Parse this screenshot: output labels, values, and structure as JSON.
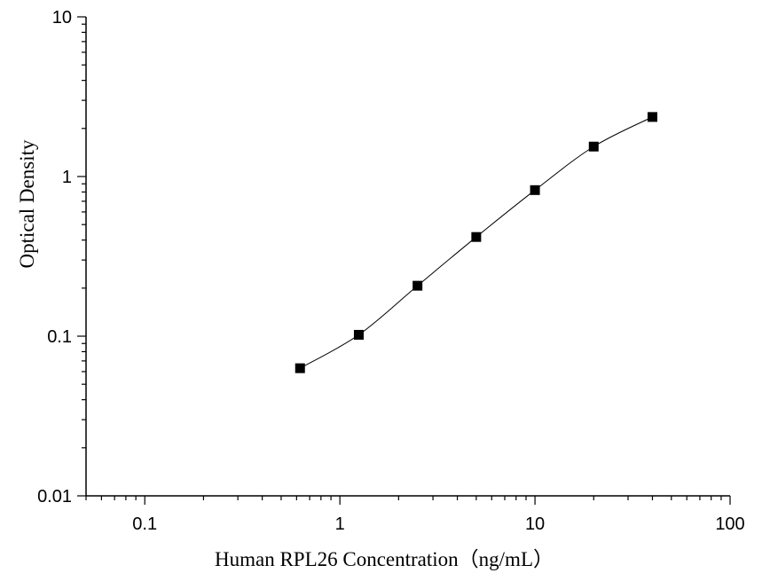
{
  "chart_data": {
    "type": "scatter",
    "xlabel": "Human RPL26 Concentration（ng/mL）",
    "ylabel": "Optical Density",
    "x_scale": "log",
    "y_scale": "log",
    "xlim": [
      0.05,
      100
    ],
    "ylim": [
      0.01,
      10
    ],
    "x_ticks": [
      {
        "value": 0.1,
        "label": "0.1"
      },
      {
        "value": 1,
        "label": "1"
      },
      {
        "value": 10,
        "label": "10"
      },
      {
        "value": 100,
        "label": "100"
      }
    ],
    "y_ticks": [
      {
        "value": 0.01,
        "label": "0.01"
      },
      {
        "value": 0.1,
        "label": "0.1"
      },
      {
        "value": 1,
        "label": "1"
      },
      {
        "value": 10,
        "label": "10"
      }
    ],
    "grid": false,
    "series": [
      {
        "x": [
          0.625,
          1.25,
          2.5,
          5,
          10,
          20,
          40
        ],
        "y": [
          0.063,
          0.102,
          0.207,
          0.418,
          0.822,
          1.54,
          2.36
        ],
        "marker": "square",
        "line": "smooth",
        "color": "#000000"
      }
    ]
  }
}
